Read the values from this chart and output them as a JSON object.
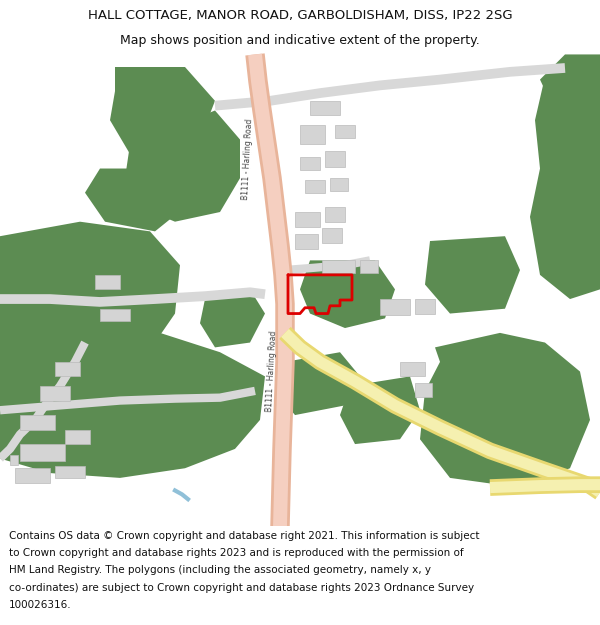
{
  "title_line1": "HALL COTTAGE, MANOR ROAD, GARBOLDISHAM, DISS, IP22 2SG",
  "title_line2": "Map shows position and indicative extent of the property.",
  "footer_text1": "Contains OS data © Crown copyright and database right 2021. This information is subject",
  "footer_text2": "to Crown copyright and database rights 2023 and is reproduced with the permission of",
  "footer_text3": "HM Land Registry. The polygons (including the associated geometry, namely x, y",
  "footer_text4": "co-ordinates) are subject to Crown copyright and database rights 2023 Ordnance Survey",
  "footer_text5": "100026316.",
  "bg_color": "#ffffff",
  "map_bg": "#ffffff",
  "road_salmon_outer": "#e8b49a",
  "road_salmon_inner": "#f5cfc0",
  "road_yellow_outer": "#e8d870",
  "road_yellow_inner": "#f5f0b0",
  "green_color": "#5c8c52",
  "building_color": "#d4d4d4",
  "building_edge": "#bbbbbb",
  "plot_border_color": "#dd0000",
  "water_color": "#90c0d8",
  "title_fontsize": 9.5,
  "subtitle_fontsize": 9.0,
  "footer_fontsize": 7.5,
  "road_label_color": "#444444",
  "road_label_size": 5.5
}
